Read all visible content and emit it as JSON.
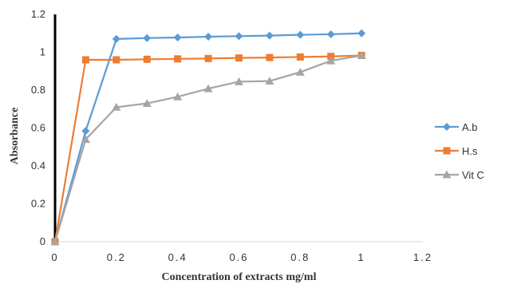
{
  "chart_data": {
    "type": "line",
    "title": "",
    "xlabel": "Concentration of extracts mg/ml",
    "ylabel": "Absorbance",
    "xlim": [
      0,
      1.2
    ],
    "ylim": [
      0,
      1.2
    ],
    "xticks": [
      "0",
      "0.2",
      "0.4",
      "0.6",
      "0.8",
      "1",
      "1.2"
    ],
    "yticks": [
      "0",
      "0.2",
      "0.4",
      "0.6",
      "0.8",
      "1",
      "1.2"
    ],
    "grid": false,
    "legend_position": "right",
    "x": [
      0,
      0.1,
      0.2,
      0.3,
      0.4,
      0.5,
      0.6,
      0.7,
      0.8,
      0.9,
      1.0
    ],
    "series": [
      {
        "name": "A.b",
        "color": "#5b9bd5",
        "marker": "diamond",
        "values": [
          0,
          0.585,
          1.07,
          1.075,
          1.078,
          1.082,
          1.085,
          1.088,
          1.092,
          1.095,
          1.1
        ]
      },
      {
        "name": "H.s",
        "color": "#ed7d31",
        "marker": "square",
        "values": [
          0,
          0.96,
          0.96,
          0.963,
          0.965,
          0.967,
          0.97,
          0.972,
          0.975,
          0.978,
          0.983
        ]
      },
      {
        "name": "Vit C",
        "color": "#a5a5a5",
        "marker": "triangle",
        "values": [
          0,
          0.54,
          0.71,
          0.73,
          0.765,
          0.808,
          0.845,
          0.848,
          0.895,
          0.955,
          0.983
        ]
      }
    ]
  }
}
